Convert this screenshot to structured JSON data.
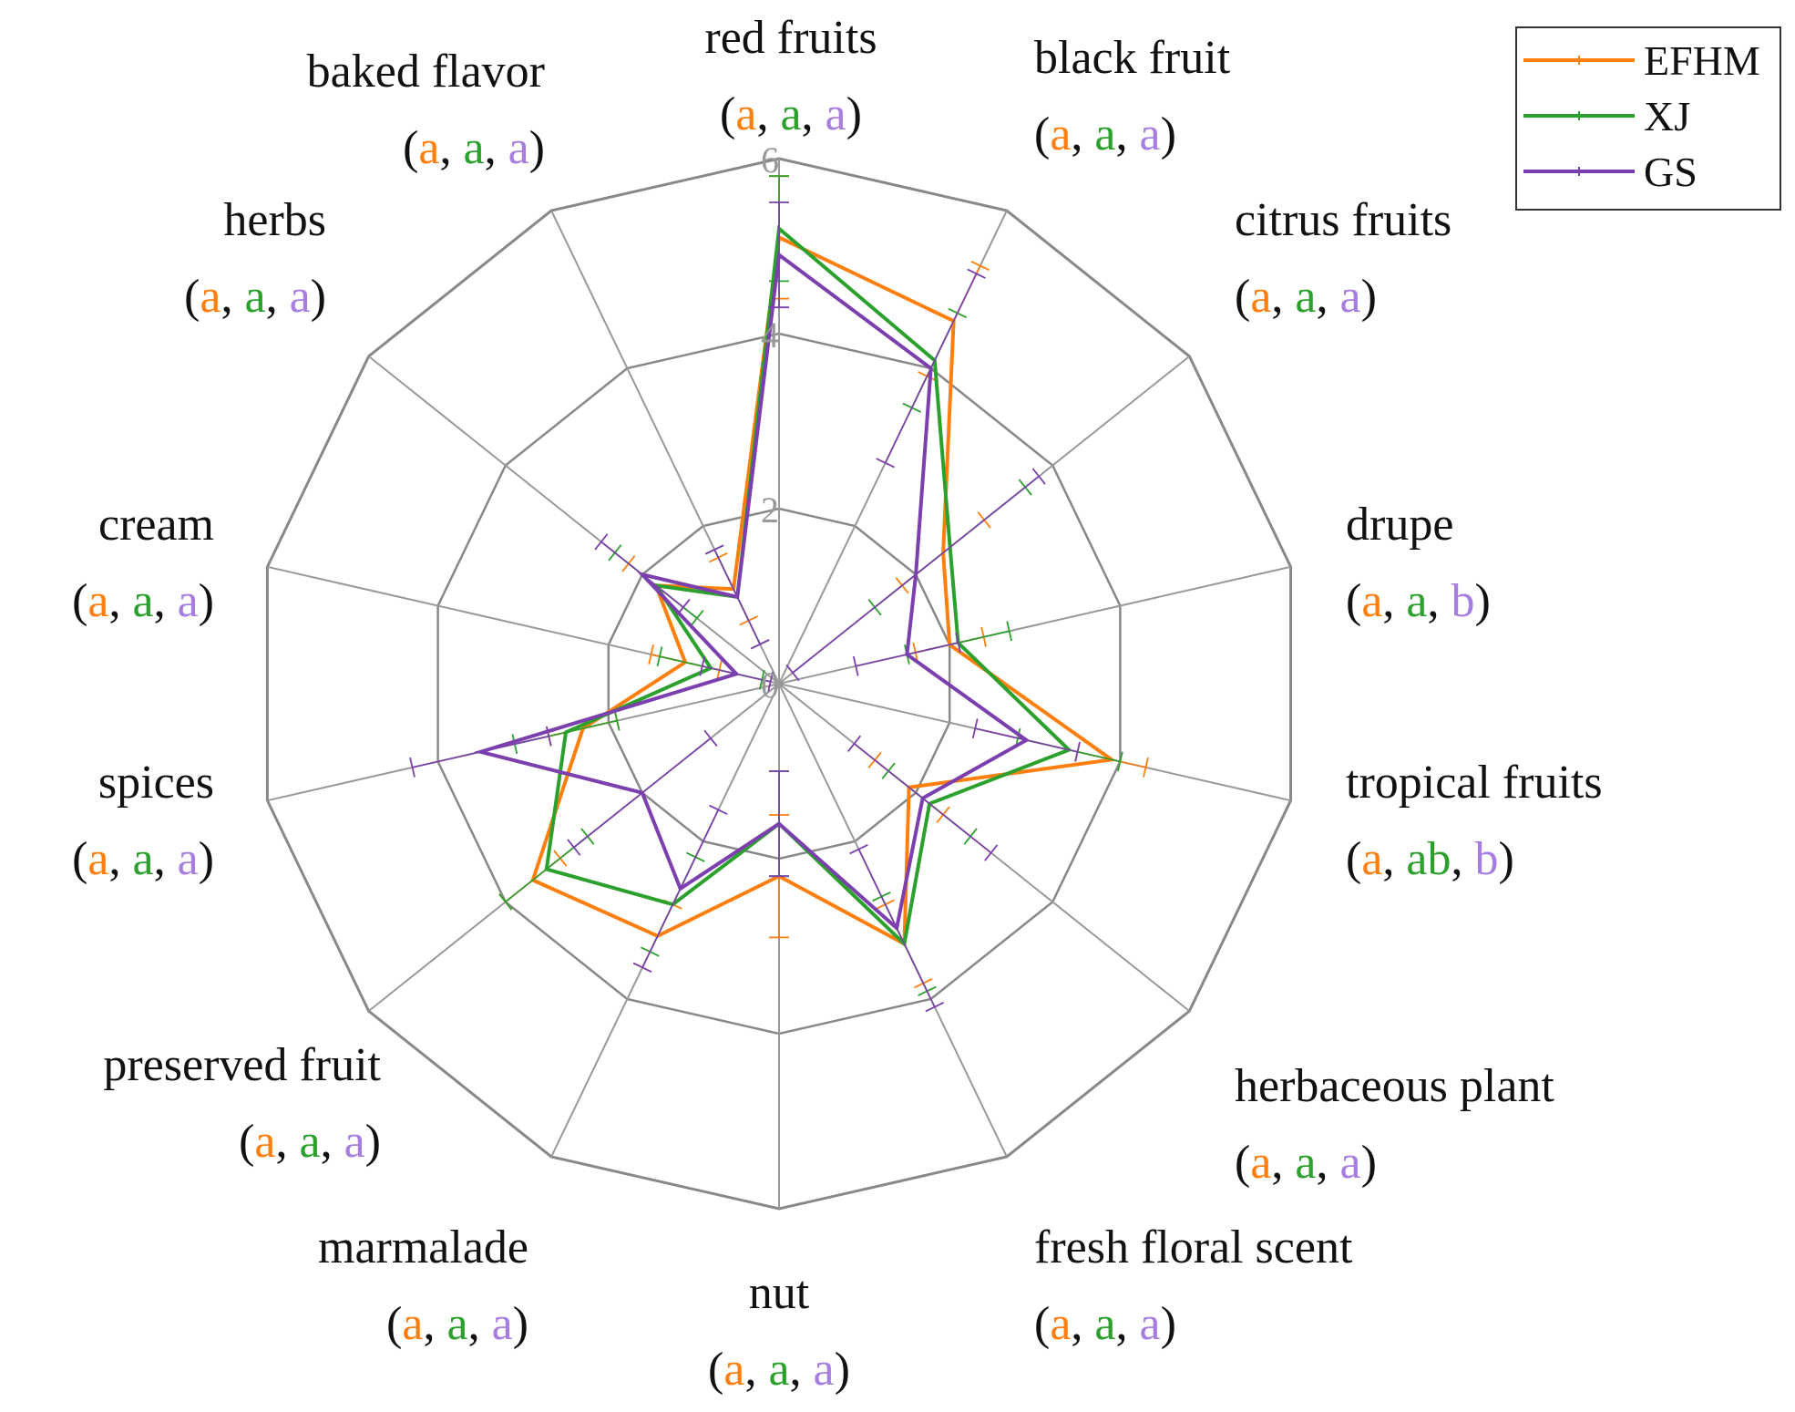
{
  "chart_data": {
    "type": "radar",
    "title": "",
    "r_range": [
      0,
      6
    ],
    "r_ticks": [
      "0",
      "2",
      "4",
      "6"
    ],
    "r_tick_values": [
      0,
      2,
      4,
      6
    ],
    "grid": true,
    "legend_position": "top-right",
    "categories": [
      "red fruits",
      "black fruit",
      "citrus fruits",
      "drupe",
      "tropical fruits",
      "herbaceous plant",
      "fresh floral scent",
      "nut",
      "marmalade",
      "preserved fruit",
      "spices",
      "cream",
      "herbs",
      "baked flavor"
    ],
    "significance": [
      [
        "a",
        "a",
        "a"
      ],
      [
        "a",
        "a",
        "a"
      ],
      [
        "a",
        "a",
        "a"
      ],
      [
        "a",
        "a",
        "b"
      ],
      [
        "a",
        "ab",
        "b"
      ],
      [
        "a",
        "a",
        "a"
      ],
      [
        "a",
        "a",
        "a"
      ],
      [
        "a",
        "a",
        "a"
      ],
      [
        "a",
        "a",
        "a"
      ],
      [
        "a",
        "a",
        "a"
      ],
      [
        "a",
        "a",
        "a"
      ],
      [
        "a",
        "a",
        "a"
      ],
      [
        "a",
        "a",
        "a"
      ],
      [
        "a",
        "a",
        "a"
      ]
    ],
    "series": [
      {
        "name": "EFHM",
        "color": "#ff7f0e",
        "values": [
          5.1,
          4.6,
          2.4,
          2.0,
          3.9,
          1.9,
          3.3,
          2.2,
          3.2,
          3.6,
          2.3,
          1.1,
          1.8,
          1.2
        ],
        "errors": [
          0.7,
          0.7,
          0.6,
          0.4,
          0.4,
          0.5,
          0.5,
          0.7,
          0.4,
          0.4,
          0.4,
          0.4,
          0.4,
          0.4
        ]
      },
      {
        "name": "XJ",
        "color": "#2ca02c",
        "values": [
          5.2,
          4.1,
          2.5,
          2.1,
          3.4,
          2.2,
          3.3,
          1.6,
          2.8,
          3.4,
          2.5,
          0.8,
          1.8,
          1.1
        ],
        "errors": [
          0.6,
          0.6,
          1.1,
          0.6,
          0.6,
          0.6,
          0.6,
          0.6,
          0.6,
          0.6,
          0.6,
          0.6,
          0.6,
          0.6
        ]
      },
      {
        "name": "GS",
        "color": "#7b3fae",
        "values": [
          4.9,
          4.0,
          2.0,
          1.5,
          2.9,
          2.1,
          3.1,
          1.6,
          2.6,
          2.0,
          3.5,
          0.5,
          2.0,
          1.1
        ],
        "errors": [
          0.6,
          1.2,
          1.8,
          0.6,
          0.6,
          1.0,
          1.0,
          0.6,
          1.0,
          1.0,
          0.8,
          0.4,
          0.6,
          0.6
        ]
      }
    ]
  }
}
